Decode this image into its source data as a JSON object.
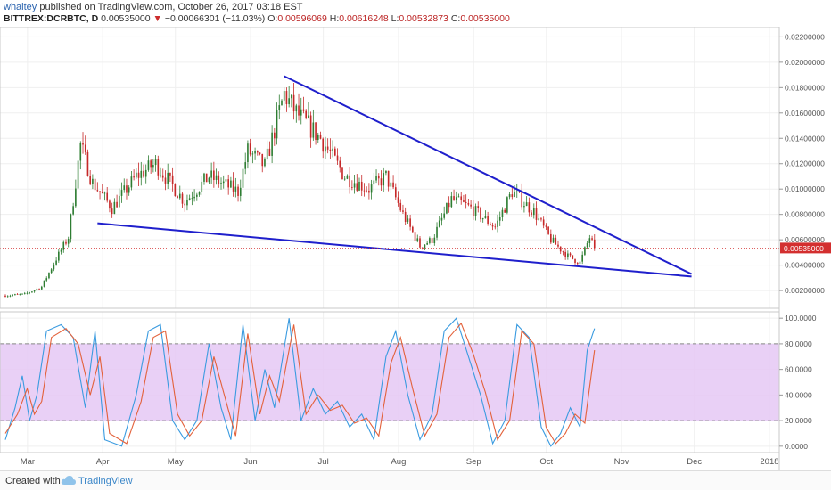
{
  "header": {
    "author": "whaitey",
    "published": "published on TradingView.com, October 26, 2017 03:18 EST",
    "symbol": "BITTREX:DCRBTC, D",
    "price": "0.00535000",
    "arrow": "▼",
    "change": "−0.00066301 (−11.03%)",
    "o_label": "O:",
    "o_value": "0.00596069",
    "h_label": "H:",
    "h_value": "0.00616248",
    "l_label": "L:",
    "l_value": "0.00532873",
    "c_label": "C:",
    "c_value": "0.00535000"
  },
  "colors": {
    "up": "#2e7d32",
    "down": "#c62828",
    "trendline": "#1f1fcc",
    "stoch_k": "#3a9be0",
    "stoch_d": "#e3613a",
    "band_fill": "#e5c8f5",
    "price_tag": "#d32f2f"
  },
  "chart_data": [
    {
      "type": "candlestick",
      "title": "",
      "x_ticks": [
        "Mar",
        "Apr",
        "May",
        "Jun",
        "Jul",
        "Aug",
        "Sep",
        "Oct",
        "Nov",
        "Dec",
        "2018"
      ],
      "y_ticks": [
        "0.00200000",
        "0.00400000",
        "0.00600000",
        "0.00800000",
        "0.01000000",
        "0.01200000",
        "0.01400000",
        "0.01600000",
        "0.01800000",
        "0.02000000",
        "0.02200000"
      ],
      "ylim": [
        0.0006,
        0.0228
      ],
      "date_range": [
        "2017-02-25",
        "2017-10-26"
      ],
      "last_price_label": "0.00535000",
      "close_key_points": [
        [
          "2017-02-25",
          0.0016
        ],
        [
          "2017-03-05",
          0.0017
        ],
        [
          "2017-03-12",
          0.0023
        ],
        [
          "2017-03-18",
          0.0045
        ],
        [
          "2017-03-23",
          0.0062
        ],
        [
          "2017-03-28",
          0.0135
        ],
        [
          "2017-04-02",
          0.0105
        ],
        [
          "2017-04-10",
          0.0085
        ],
        [
          "2017-04-20",
          0.011
        ],
        [
          "2017-04-28",
          0.012
        ],
        [
          "2017-05-10",
          0.009
        ],
        [
          "2017-05-20",
          0.011
        ],
        [
          "2017-06-01",
          0.0098
        ],
        [
          "2017-06-05",
          0.013
        ],
        [
          "2017-06-12",
          0.0118
        ],
        [
          "2017-06-20",
          0.0175
        ],
        [
          "2017-06-25",
          0.016
        ],
        [
          "2017-07-05",
          0.014
        ],
        [
          "2017-07-15",
          0.011
        ],
        [
          "2017-07-25",
          0.01
        ],
        [
          "2017-08-01",
          0.011
        ],
        [
          "2017-08-08",
          0.008
        ],
        [
          "2017-08-15",
          0.0055
        ],
        [
          "2017-08-20",
          0.006
        ],
        [
          "2017-08-28",
          0.0092
        ],
        [
          "2017-09-05",
          0.0085
        ],
        [
          "2017-09-15",
          0.007
        ],
        [
          "2017-09-22",
          0.0098
        ],
        [
          "2017-10-01",
          0.0082
        ],
        [
          "2017-10-08",
          0.006
        ],
        [
          "2017-10-15",
          0.0047
        ],
        [
          "2017-10-20",
          0.0042
        ],
        [
          "2017-10-24",
          0.0062
        ],
        [
          "2017-10-26",
          0.00535
        ]
      ],
      "trendlines": [
        {
          "name": "",
          "points": [
            [
              "2017-06-20",
              0.0189
            ],
            [
              "2017-12-05",
              0.0033
            ]
          ]
        },
        {
          "name": "",
          "points": [
            [
              "2017-04-04",
              0.0073
            ],
            [
              "2017-12-05",
              0.0031
            ]
          ]
        }
      ]
    },
    {
      "type": "line",
      "title": "",
      "y_ticks": [
        "0.0000",
        "20.0000",
        "40.0000",
        "60.0000",
        "80.0000",
        "100.0000"
      ],
      "ylim": [
        -5,
        105
      ],
      "bands": [
        20,
        80
      ],
      "series": [
        {
          "name": "",
          "points": [
            [
              "2017-02-25",
              5
            ],
            [
              "2017-03-01",
              30
            ],
            [
              "2017-03-04",
              55
            ],
            [
              "2017-03-07",
              20
            ],
            [
              "2017-03-10",
              40
            ],
            [
              "2017-03-14",
              90
            ],
            [
              "2017-03-20",
              95
            ],
            [
              "2017-03-25",
              85
            ],
            [
              "2017-03-30",
              30
            ],
            [
              "2017-04-03",
              90
            ],
            [
              "2017-04-07",
              5
            ],
            [
              "2017-04-14",
              0
            ],
            [
              "2017-04-20",
              40
            ],
            [
              "2017-04-25",
              90
            ],
            [
              "2017-04-30",
              95
            ],
            [
              "2017-05-05",
              20
            ],
            [
              "2017-05-10",
              5
            ],
            [
              "2017-05-15",
              20
            ],
            [
              "2017-05-20",
              80
            ],
            [
              "2017-05-25",
              30
            ],
            [
              "2017-05-29",
              5
            ],
            [
              "2017-06-03",
              95
            ],
            [
              "2017-06-08",
              20
            ],
            [
              "2017-06-12",
              60
            ],
            [
              "2017-06-16",
              30
            ],
            [
              "2017-06-22",
              100
            ],
            [
              "2017-06-27",
              20
            ],
            [
              "2017-07-02",
              45
            ],
            [
              "2017-07-07",
              25
            ],
            [
              "2017-07-12",
              35
            ],
            [
              "2017-07-17",
              15
            ],
            [
              "2017-07-22",
              25
            ],
            [
              "2017-07-27",
              5
            ],
            [
              "2017-08-01",
              70
            ],
            [
              "2017-08-05",
              90
            ],
            [
              "2017-08-10",
              40
            ],
            [
              "2017-08-15",
              5
            ],
            [
              "2017-08-20",
              25
            ],
            [
              "2017-08-25",
              90
            ],
            [
              "2017-08-30",
              100
            ],
            [
              "2017-09-04",
              70
            ],
            [
              "2017-09-09",
              40
            ],
            [
              "2017-09-14",
              2
            ],
            [
              "2017-09-19",
              20
            ],
            [
              "2017-09-24",
              95
            ],
            [
              "2017-09-29",
              85
            ],
            [
              "2017-10-04",
              15
            ],
            [
              "2017-10-08",
              0
            ],
            [
              "2017-10-12",
              10
            ],
            [
              "2017-10-16",
              30
            ],
            [
              "2017-10-20",
              15
            ],
            [
              "2017-10-23",
              75
            ],
            [
              "2017-10-26",
              92
            ]
          ]
        },
        {
          "name": "",
          "points": [
            [
              "2017-02-25",
              10
            ],
            [
              "2017-03-02",
              25
            ],
            [
              "2017-03-06",
              45
            ],
            [
              "2017-03-09",
              25
            ],
            [
              "2017-03-12",
              35
            ],
            [
              "2017-03-16",
              85
            ],
            [
              "2017-03-22",
              92
            ],
            [
              "2017-03-27",
              80
            ],
            [
              "2017-04-01",
              40
            ],
            [
              "2017-04-05",
              70
            ],
            [
              "2017-04-09",
              10
            ],
            [
              "2017-04-16",
              2
            ],
            [
              "2017-04-22",
              35
            ],
            [
              "2017-04-27",
              85
            ],
            [
              "2017-05-02",
              90
            ],
            [
              "2017-05-07",
              25
            ],
            [
              "2017-05-12",
              8
            ],
            [
              "2017-05-17",
              20
            ],
            [
              "2017-05-22",
              70
            ],
            [
              "2017-05-27",
              35
            ],
            [
              "2017-05-31",
              8
            ],
            [
              "2017-06-05",
              88
            ],
            [
              "2017-06-10",
              25
            ],
            [
              "2017-06-14",
              55
            ],
            [
              "2017-06-18",
              35
            ],
            [
              "2017-06-24",
              95
            ],
            [
              "2017-06-29",
              25
            ],
            [
              "2017-07-04",
              40
            ],
            [
              "2017-07-09",
              28
            ],
            [
              "2017-07-14",
              32
            ],
            [
              "2017-07-19",
              18
            ],
            [
              "2017-07-24",
              22
            ],
            [
              "2017-07-29",
              8
            ],
            [
              "2017-08-03",
              65
            ],
            [
              "2017-08-07",
              85
            ],
            [
              "2017-08-12",
              45
            ],
            [
              "2017-08-17",
              8
            ],
            [
              "2017-08-22",
              25
            ],
            [
              "2017-08-27",
              85
            ],
            [
              "2017-09-01",
              96
            ],
            [
              "2017-09-06",
              72
            ],
            [
              "2017-09-11",
              42
            ],
            [
              "2017-09-16",
              5
            ],
            [
              "2017-09-21",
              20
            ],
            [
              "2017-09-26",
              90
            ],
            [
              "2017-10-01",
              80
            ],
            [
              "2017-10-06",
              15
            ],
            [
              "2017-10-10",
              2
            ],
            [
              "2017-10-14",
              10
            ],
            [
              "2017-10-18",
              25
            ],
            [
              "2017-10-22",
              18
            ],
            [
              "2017-10-26",
              75
            ]
          ]
        }
      ]
    }
  ],
  "footer": {
    "created": "Created with",
    "brand": "TradingView"
  }
}
